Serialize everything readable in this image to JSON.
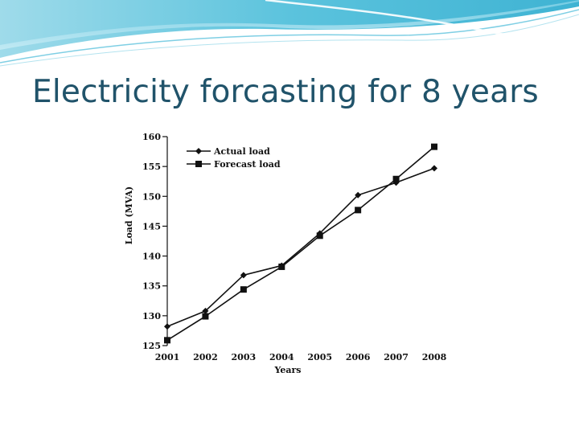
{
  "slide": {
    "title": "Electricity forcasting for 8 years",
    "accent_color": "#5bc3dd",
    "title_color": "#20536a"
  },
  "chart_data": {
    "type": "line",
    "x": [
      "2001",
      "2002",
      "2003",
      "2004",
      "2005",
      "2006",
      "2007",
      "2008"
    ],
    "series": [
      {
        "name": "Actual load",
        "marker": "diamond",
        "values": [
          128.2,
          130.8,
          136.8,
          138.4,
          143.8,
          150.2,
          152.3,
          154.7
        ]
      },
      {
        "name": "Forecast load",
        "marker": "square",
        "values": [
          125.9,
          129.9,
          134.4,
          138.2,
          143.4,
          147.7,
          152.9,
          158.3
        ]
      }
    ],
    "xlabel": "Years",
    "ylabel": "Load (MVA)",
    "ylim": [
      125,
      160
    ],
    "yticks": [
      "125",
      "130",
      "135",
      "140",
      "145",
      "150",
      "155",
      "160"
    ],
    "legend": "top-left",
    "grid": false
  }
}
